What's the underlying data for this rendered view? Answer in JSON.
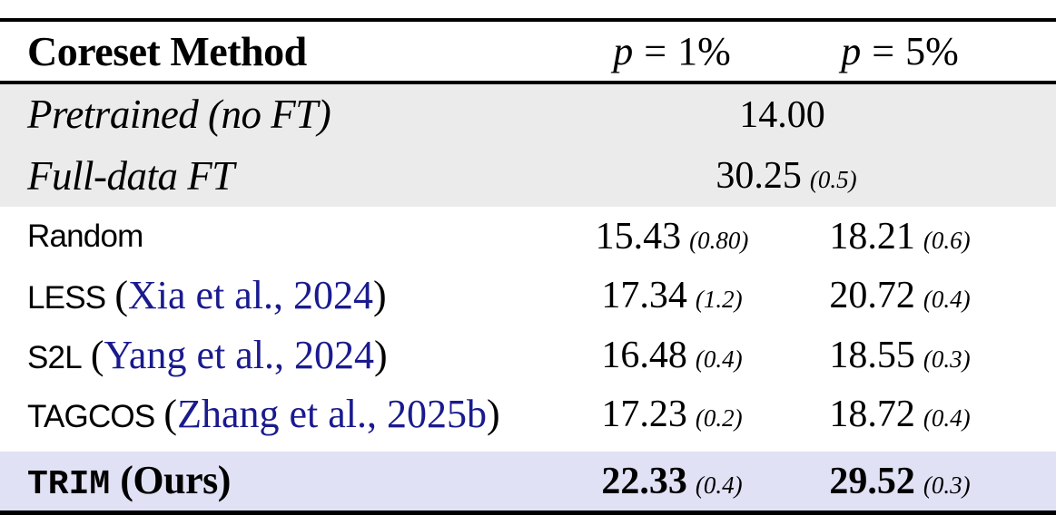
{
  "colors": {
    "baseline_band_bg": "#ebebeb",
    "highlight_row_bg": "#e1e1f5",
    "citation_blue": "#1a1a8f",
    "rule_color": "#000000"
  },
  "table": {
    "header": {
      "method_col": "Coreset Method",
      "p1": {
        "symbol": "p",
        "equals": "=",
        "value": "1%"
      },
      "p5": {
        "symbol": "p",
        "equals": "=",
        "value": "5%"
      }
    },
    "baseline_rows": [
      {
        "label": "Pretrained (no FT)",
        "value": "14.00",
        "std": ""
      },
      {
        "label": "Full-data FT",
        "value": "30.25",
        "std": "(0.5)"
      }
    ],
    "method_rows": [
      {
        "name": "Random",
        "p1": {
          "value": "15.43",
          "std": "(0.80)"
        },
        "p5": {
          "value": "18.21",
          "std": "(0.6)"
        }
      },
      {
        "name": "LESS",
        "cite": {
          "open": "(",
          "text": "Xia et al., 2024",
          "close": ")"
        },
        "p1": {
          "value": "17.34",
          "std": "(1.2)"
        },
        "p5": {
          "value": "20.72",
          "std": "(0.4)"
        }
      },
      {
        "name": "S2L",
        "cite": {
          "open": "(",
          "text": "Yang et al., 2024",
          "close": ")"
        },
        "p1": {
          "value": "16.48",
          "std": "(0.4)"
        },
        "p5": {
          "value": "18.55",
          "std": "(0.3)"
        }
      },
      {
        "name": "TAGCOS",
        "cite": {
          "open": "(",
          "text": "Zhang et al., 2025b",
          "close": ")"
        },
        "p1": {
          "value": "17.23",
          "std": "(0.2)"
        },
        "p5": {
          "value": "18.72",
          "std": "(0.4)"
        }
      }
    ],
    "ours_row": {
      "name": "TRIM",
      "suffix": "(Ours)",
      "p1": {
        "value": "22.33",
        "std": "(0.4)"
      },
      "p5": {
        "value": "29.52",
        "std": "(0.3)"
      }
    }
  }
}
